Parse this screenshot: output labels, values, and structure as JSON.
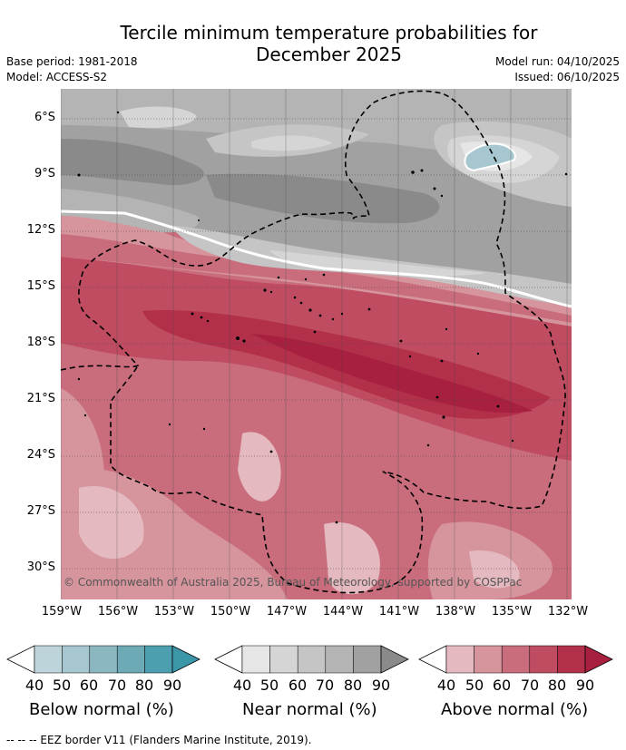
{
  "title_line1": "Tercile minimum temperature probabilities for",
  "title_line2": "December 2025",
  "base_period": "Base period: 1981-2018",
  "model": "Model: ACCESS-S2",
  "model_run": "Model run: 04/10/2025",
  "issued": "Issued: 06/10/2025",
  "lat_labels": [
    "6°S",
    "9°S",
    "12°S",
    "15°S",
    "18°S",
    "21°S",
    "24°S",
    "27°S",
    "30°S"
  ],
  "lon_labels": [
    "159°W",
    "156°W",
    "153°W",
    "150°W",
    "147°W",
    "144°W",
    "141°W",
    "138°W",
    "135°W",
    "132°W"
  ],
  "copyright": "© Commonwealth of Australia 2025, Bureau of Meteorology, supported by COSPPac",
  "legend": {
    "below": {
      "title": "Below normal (%)",
      "ticks": [
        "40",
        "50",
        "60",
        "70",
        "80",
        "90"
      ],
      "colors": [
        "#bed4db",
        "#a6c7cf",
        "#8bb7c1",
        "#6eaab6",
        "#4c9faf",
        "#3b97a8"
      ]
    },
    "near": {
      "title": "Near normal (%)",
      "ticks": [
        "40",
        "50",
        "60",
        "70",
        "80",
        "90"
      ],
      "colors": [
        "#e6e6e6",
        "#d5d5d5",
        "#c5c5c5",
        "#b4b4b4",
        "#a1a1a1",
        "#8a8a8a"
      ]
    },
    "above": {
      "title": "Above normal (%)",
      "ticks": [
        "40",
        "50",
        "60",
        "70",
        "80",
        "90"
      ],
      "colors": [
        "#e5b9c0",
        "#d6949d",
        "#c96d7c",
        "#c04c62",
        "#b2304a",
        "#a8203f"
      ]
    }
  },
  "footnote": "-- -- -- EEZ border V11 (Flanders Marine Institute, 2019)."
}
